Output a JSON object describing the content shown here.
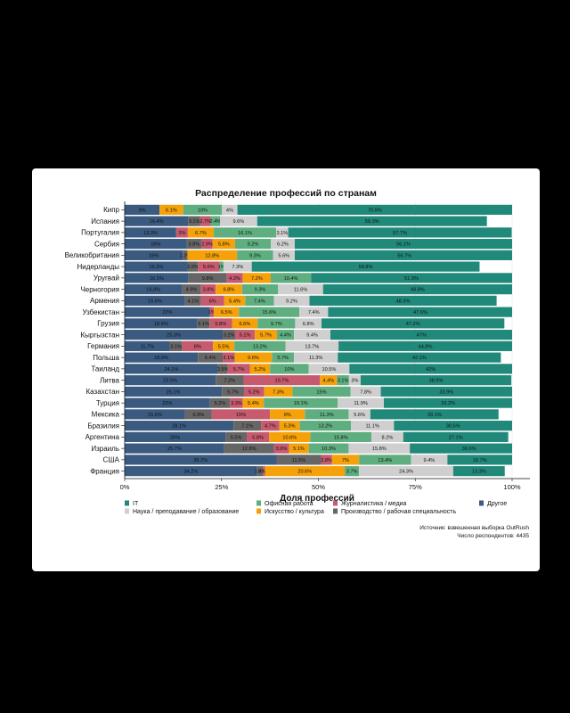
{
  "chart_data": {
    "type": "bar",
    "stacked": true,
    "orientation": "horizontal",
    "title": "Распределение профессий по странам",
    "xlabel": "Доля профессий",
    "ylabel": "",
    "xlim": [
      0,
      100
    ],
    "x_ticks": [
      "0%",
      "25%",
      "50%",
      "75%",
      "100%"
    ],
    "categories": [
      "Кипр",
      "Испания",
      "Португалия",
      "Сербия",
      "Великобритания",
      "Нидерланды",
      "Уругвай",
      "Черногория",
      "Армения",
      "Узбекистан",
      "Грузия",
      "Кыргызстан",
      "Германия",
      "Польша",
      "Таиланд",
      "Литва",
      "Казахстан",
      "Турция",
      "Мексика",
      "Бразилия",
      "Аргентина",
      "Израиль",
      "США",
      "Франция"
    ],
    "series": [
      {
        "name": "Другое",
        "color": "#3a5a80",
        "values": [
          9,
          16.4,
          13.3,
          16,
          15,
          16.3,
          16.5,
          14.8,
          15.6,
          22,
          18.8,
          25.3,
          11.7,
          18.9,
          24.1,
          23.5,
          25.1,
          22,
          15.6,
          28.1,
          26,
          25.7,
          39.2,
          34.2
        ]
      },
      {
        "name": "Производство / рабочая специальность",
        "color": "#666666",
        "values": [
          0,
          3.1,
          0,
          3.8,
          1.2,
          2.6,
          9.8,
          4.9,
          4.1,
          0,
          3.1,
          3.2,
          3.1,
          6.4,
          2.5,
          7.2,
          5.7,
          5.2,
          6.9,
          7.1,
          5.5,
          12.8,
          11.5,
          1.5
        ]
      },
      {
        "name": "Журналистика / медиа",
        "color": "#c65a6e",
        "values": [
          0,
          2.7,
          3,
          2.9,
          0,
          5.6,
          4.2,
          3.8,
          6,
          1,
          5.8,
          5.1,
          8,
          3.1,
          5.7,
          19.7,
          5.2,
          3.3,
          15,
          4.7,
          5.8,
          3.9,
          2.8,
          0.5
        ]
      },
      {
        "name": "Искусство / культура",
        "color": "#f5a20a",
        "values": [
          6.1,
          0,
          6.7,
          5.8,
          12.8,
          0,
          7.2,
          6.8,
          5.4,
          6.5,
          6.6,
          5.7,
          5.5,
          9.6,
          5.2,
          4.4,
          7.3,
          5.4,
          9,
          5.3,
          10.6,
          5.1,
          7,
          20.6
        ]
      },
      {
        "name": "Офисная работа",
        "color": "#5fae80",
        "values": [
          10,
          2.4,
          16.1,
          9.2,
          9.3,
          1,
          10.4,
          9.3,
          7.4,
          15.6,
          9.7,
          4.4,
          13.2,
          5.7,
          10,
          3.1,
          15,
          19.1,
          11.3,
          13.2,
          15.8,
          10.3,
          13.4,
          3.7
        ]
      },
      {
        "name": "Наука / преподавание / образование",
        "color": "#cfcfcf",
        "values": [
          4,
          9.6,
          3.1,
          6.2,
          5.6,
          7.3,
          0,
          11.6,
          9.2,
          7.4,
          6.8,
          9.4,
          13.7,
          11.3,
          10.5,
          3,
          7.8,
          11.9,
          5.6,
          11.1,
          8.2,
          15.8,
          9.4,
          24.3
        ]
      },
      {
        "name": "IT",
        "color": "#21897a",
        "values": [
          70.9,
          59.3,
          57.7,
          56.1,
          56.7,
          58.8,
          51.9,
          48.8,
          48.3,
          47.6,
          47.2,
          47,
          44.8,
          42.1,
          42,
          38.9,
          33.9,
          33.2,
          33.1,
          30.5,
          27.1,
          30.6,
          16.7,
          13.3
        ]
      }
    ],
    "segment_labels": [
      [
        "9%",
        "",
        "",
        "6.1%",
        "10%",
        "4%",
        "70.9%"
      ],
      [
        "16.4%",
        "3.1%",
        "2.7%",
        "",
        "2.4%",
        "9.6%",
        "59.3%"
      ],
      [
        "13.3%",
        "",
        "3%",
        "6.7%",
        "16.1%",
        "3.1%",
        "57.7%"
      ],
      [
        "16%",
        "3.8%",
        "2.9%",
        "5.8%",
        "9.2%",
        "6.2%",
        "56.1%"
      ],
      [
        "15%",
        "1.2%",
        "",
        "12.8%",
        "9.3%",
        "5.6%",
        "56.7%"
      ],
      [
        "16.3%",
        "2.6%",
        "5.6%",
        "",
        "1%",
        "7.3%",
        "58.8%"
      ],
      [
        "16.5%",
        "9.8%",
        "4.2%",
        "7.2%",
        "10.4%",
        "",
        "51.9%"
      ],
      [
        "14.8%",
        "4.9%",
        "3.8%",
        "6.8%",
        "9.3%",
        "11.6%",
        "48.8%"
      ],
      [
        "15.6%",
        "4.1%",
        "6%",
        "5.4%",
        "7.4%",
        "9.2%",
        "48.3%"
      ],
      [
        "22%",
        "",
        "1%",
        "6.5%",
        "15.6%",
        "7.4%",
        "47.6%"
      ],
      [
        "18.8%",
        "3.1%",
        "5.8%",
        "6.6%",
        "9.7%",
        "6.8%",
        "47.2%"
      ],
      [
        "25.3%",
        "3.2%",
        "5.1%",
        "5.7%",
        "4.4%",
        "9.4%",
        "47%"
      ],
      [
        "11.7%",
        "3.1%",
        "8%",
        "5.5%",
        "13.2%",
        "13.7%",
        "44.8%"
      ],
      [
        "18.9%",
        "6.4%",
        "3.1%",
        "9.6%",
        "5.7%",
        "11.3%",
        "42.1%"
      ],
      [
        "24.1%",
        "2.5%",
        "5.7%",
        "5.2%",
        "10%",
        "10.5%",
        "42%"
      ],
      [
        "23.5%",
        "7.2%",
        "19.7%",
        "4.4%",
        "3.1%",
        "3%",
        "38.9%"
      ],
      [
        "25.1%",
        "5.7%",
        "5.2%",
        "7.3%",
        "15%",
        "7.8%",
        "33.9%"
      ],
      [
        "22%",
        "5.2%",
        "3.3%",
        "5.4%",
        "19.1%",
        "11.9%",
        "33.2%"
      ],
      [
        "15.6%",
        "6.9%",
        "15%",
        "9%",
        "11.3%",
        "5.6%",
        "33.1%"
      ],
      [
        "28.1%",
        "7.1%",
        "4.7%",
        "5.3%",
        "13.2%",
        "11.1%",
        "30.5%"
      ],
      [
        "26%",
        "5.5%",
        "5.8%",
        "10.6%",
        "15.8%",
        "8.2%",
        "27.1%"
      ],
      [
        "25.7%",
        "12.8%",
        "3.9%",
        "5.1%",
        "10.3%",
        "15.8%",
        "30.6%"
      ],
      [
        "39.2%",
        "11.5%",
        "2.8%",
        "7%",
        "13.4%",
        "9.4%",
        "16.7%"
      ],
      [
        "34.2%",
        "1.5%",
        "0.5%",
        "20.6%",
        "3.7%",
        "24.3%",
        "13.3%"
      ]
    ],
    "legend": {
      "placement": "bottom",
      "items": [
        {
          "name": "IT",
          "color": "#21897a"
        },
        {
          "name": "Наука / преподавание / образование",
          "color": "#cfcfcf"
        },
        {
          "name": "Офисная работа",
          "color": "#5fae80"
        },
        {
          "name": "Искусство / культура",
          "color": "#f5a20a"
        },
        {
          "name": "Журналистика / медиа",
          "color": "#c65a6e"
        },
        {
          "name": "Производство / рабочая специальность",
          "color": "#666666"
        },
        {
          "name": "Другое",
          "color": "#3a5a80"
        }
      ]
    },
    "source_line1": "Источник: взвешенная выборка OutRush",
    "source_line2": "Число респондентов: 4435"
  }
}
